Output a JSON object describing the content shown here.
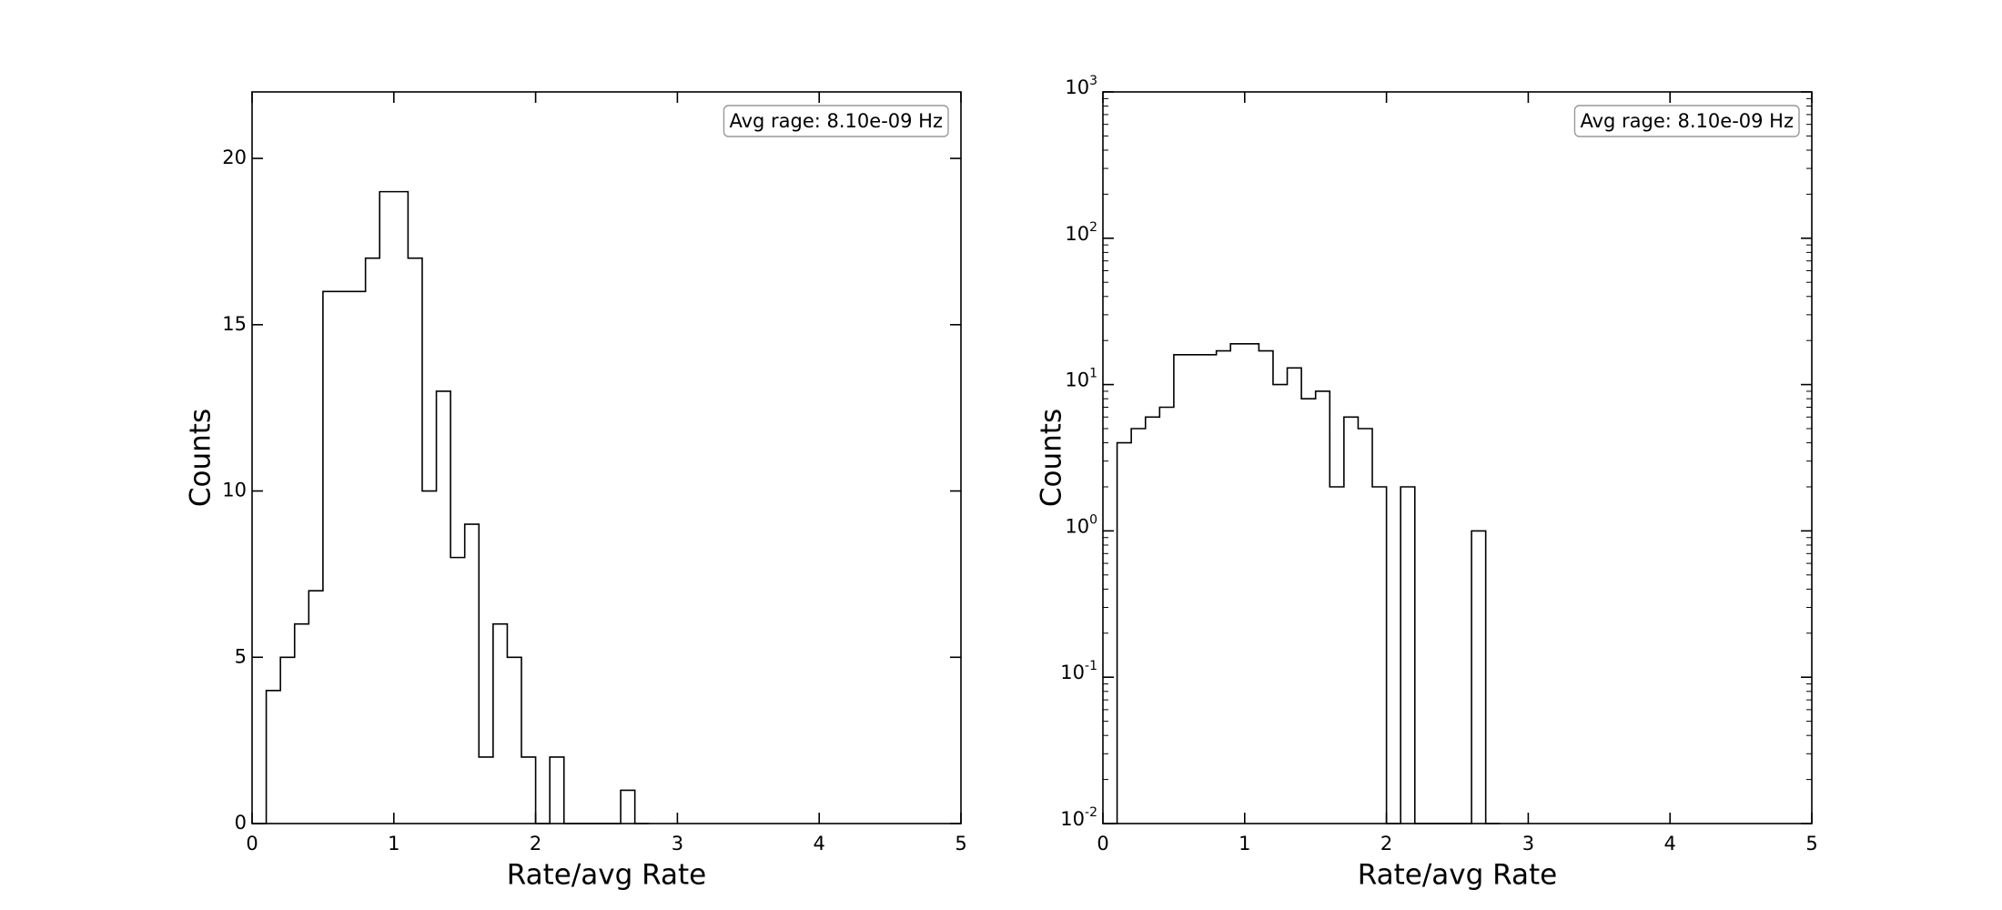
{
  "chart_data": [
    {
      "type": "histogram",
      "xlabel": "Rate/avg Rate",
      "ylabel": "Counts",
      "xlim": [
        0,
        5
      ],
      "ylim": [
        0,
        22
      ],
      "yscale": "linear",
      "grid": false,
      "annotation": "Avg rage: 8.10e-09 Hz",
      "annotation_placement": "top-right",
      "bin_width": 0.1,
      "xticks": [
        "0",
        "1",
        "2",
        "3",
        "4",
        "5"
      ],
      "yticks": [
        "0",
        "5",
        "10",
        "15",
        "20"
      ],
      "bins": [
        {
          "x0": 0.0,
          "count": 0
        },
        {
          "x0": 0.1,
          "count": 4
        },
        {
          "x0": 0.2,
          "count": 5
        },
        {
          "x0": 0.3,
          "count": 6
        },
        {
          "x0": 0.4,
          "count": 7
        },
        {
          "x0": 0.5,
          "count": 16
        },
        {
          "x0": 0.6,
          "count": 16
        },
        {
          "x0": 0.7,
          "count": 16
        },
        {
          "x0": 0.8,
          "count": 17
        },
        {
          "x0": 0.9,
          "count": 19
        },
        {
          "x0": 1.0,
          "count": 19
        },
        {
          "x0": 1.1,
          "count": 17
        },
        {
          "x0": 1.2,
          "count": 10
        },
        {
          "x0": 1.3,
          "count": 13
        },
        {
          "x0": 1.4,
          "count": 8
        },
        {
          "x0": 1.5,
          "count": 9
        },
        {
          "x0": 1.6,
          "count": 2
        },
        {
          "x0": 1.7,
          "count": 6
        },
        {
          "x0": 1.8,
          "count": 5
        },
        {
          "x0": 1.9,
          "count": 2
        },
        {
          "x0": 2.0,
          "count": 0
        },
        {
          "x0": 2.1,
          "count": 2
        },
        {
          "x0": 2.2,
          "count": 0
        },
        {
          "x0": 2.3,
          "count": 0
        },
        {
          "x0": 2.4,
          "count": 0
        },
        {
          "x0": 2.5,
          "count": 0
        },
        {
          "x0": 2.6,
          "count": 1
        },
        {
          "x0": 2.7,
          "count": 0
        }
      ]
    },
    {
      "type": "histogram",
      "xlabel": "Rate/avg Rate",
      "ylabel": "Counts",
      "xlim": [
        0,
        5
      ],
      "ylim": [
        0.01,
        1000
      ],
      "yscale": "log",
      "grid": false,
      "annotation": "Avg rage: 8.10e-09 Hz",
      "annotation_placement": "top-right",
      "bin_width": 0.1,
      "xticks": [
        "0",
        "1",
        "2",
        "3",
        "4",
        "5"
      ],
      "yticks": [
        {
          "base": "10",
          "exp": "-2"
        },
        {
          "base": "10",
          "exp": "-1"
        },
        {
          "base": "10",
          "exp": "0"
        },
        {
          "base": "10",
          "exp": "1"
        },
        {
          "base": "10",
          "exp": "2"
        },
        {
          "base": "10",
          "exp": "3"
        }
      ],
      "bins": [
        {
          "x0": 0.0,
          "count": 0
        },
        {
          "x0": 0.1,
          "count": 4
        },
        {
          "x0": 0.2,
          "count": 5
        },
        {
          "x0": 0.3,
          "count": 6
        },
        {
          "x0": 0.4,
          "count": 7
        },
        {
          "x0": 0.5,
          "count": 16
        },
        {
          "x0": 0.6,
          "count": 16
        },
        {
          "x0": 0.7,
          "count": 16
        },
        {
          "x0": 0.8,
          "count": 17
        },
        {
          "x0": 0.9,
          "count": 19
        },
        {
          "x0": 1.0,
          "count": 19
        },
        {
          "x0": 1.1,
          "count": 17
        },
        {
          "x0": 1.2,
          "count": 10
        },
        {
          "x0": 1.3,
          "count": 13
        },
        {
          "x0": 1.4,
          "count": 8
        },
        {
          "x0": 1.5,
          "count": 9
        },
        {
          "x0": 1.6,
          "count": 2
        },
        {
          "x0": 1.7,
          "count": 6
        },
        {
          "x0": 1.8,
          "count": 5
        },
        {
          "x0": 1.9,
          "count": 2
        },
        {
          "x0": 2.0,
          "count": 0
        },
        {
          "x0": 2.1,
          "count": 2
        },
        {
          "x0": 2.2,
          "count": 0
        },
        {
          "x0": 2.3,
          "count": 0
        },
        {
          "x0": 2.4,
          "count": 0
        },
        {
          "x0": 2.5,
          "count": 0
        },
        {
          "x0": 2.6,
          "count": 1
        },
        {
          "x0": 2.7,
          "count": 0
        }
      ]
    }
  ]
}
